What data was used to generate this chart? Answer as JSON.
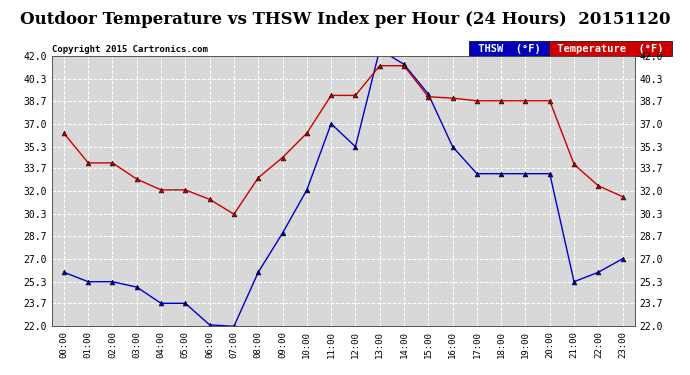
{
  "title": "Outdoor Temperature vs THSW Index per Hour (24 Hours)  20151120",
  "copyright": "Copyright 2015 Cartronics.com",
  "hours": [
    "00:00",
    "01:00",
    "02:00",
    "03:00",
    "04:00",
    "05:00",
    "06:00",
    "07:00",
    "08:00",
    "09:00",
    "10:00",
    "11:00",
    "12:00",
    "13:00",
    "14:00",
    "15:00",
    "16:00",
    "17:00",
    "18:00",
    "19:00",
    "20:00",
    "21:00",
    "22:00",
    "23:00"
  ],
  "thsw": [
    26.0,
    25.3,
    25.3,
    24.9,
    23.7,
    23.7,
    22.1,
    22.0,
    26.0,
    28.9,
    32.1,
    37.0,
    35.3,
    42.5,
    41.4,
    39.2,
    35.3,
    33.3,
    33.3,
    33.3,
    33.3,
    25.3,
    26.0,
    27.0
  ],
  "temperature": [
    36.3,
    34.1,
    34.1,
    32.9,
    32.1,
    32.1,
    31.4,
    30.3,
    33.0,
    34.5,
    36.3,
    39.1,
    39.1,
    41.3,
    41.3,
    39.0,
    38.9,
    38.7,
    38.7,
    38.7,
    38.7,
    34.0,
    32.4,
    31.6
  ],
  "ylim": [
    22.0,
    42.0
  ],
  "yticks": [
    22.0,
    23.7,
    25.3,
    27.0,
    28.7,
    30.3,
    32.0,
    33.7,
    35.3,
    37.0,
    38.7,
    40.3,
    42.0
  ],
  "thsw_color": "#0000cc",
  "temp_color": "#cc0000",
  "bg_color": "#ffffff",
  "plot_bg_color": "#d8d8d8",
  "grid_color": "#ffffff",
  "title_fontsize": 12,
  "legend_thsw_bg": "#0000bb",
  "legend_temp_bg": "#cc0000"
}
